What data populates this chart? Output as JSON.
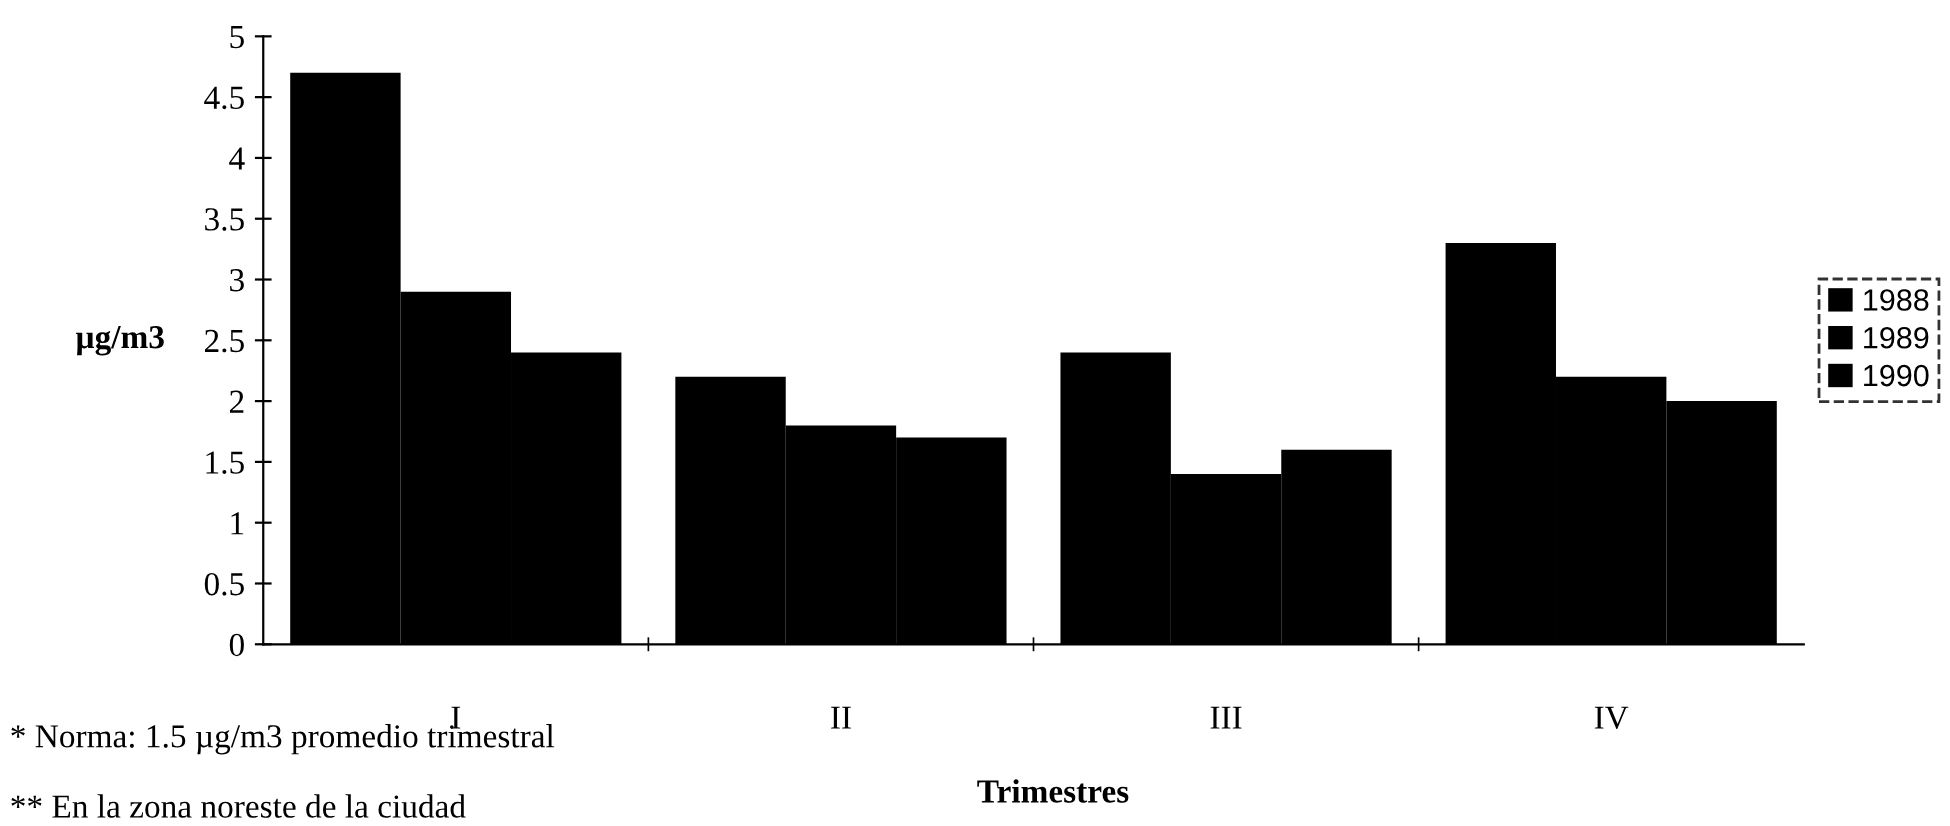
{
  "chart_data": {
    "type": "bar",
    "xlabel": "Trimestres",
    "ylabel": "µg/m3",
    "categories": [
      "I",
      "II",
      "III",
      "IV"
    ],
    "series": [
      {
        "name": "1988",
        "color": "#000000",
        "values": [
          4.7,
          2.2,
          2.4,
          3.3
        ]
      },
      {
        "name": "1989",
        "color": "#000000",
        "values": [
          2.9,
          1.8,
          1.4,
          2.2
        ]
      },
      {
        "name": "1990",
        "color": "#000000",
        "values": [
          2.4,
          1.7,
          1.6,
          2.0
        ]
      }
    ],
    "ylim": [
      0,
      5
    ],
    "yticks": [
      0,
      0.5,
      1,
      1.5,
      2,
      2.5,
      3,
      3.5,
      4,
      4.5,
      5
    ],
    "grid": false,
    "legend": "right",
    "annotations": [
      "* Norma: 1.5 µg/m3 promedio trimestral",
      "** En la zona noreste de la ciudad"
    ]
  }
}
